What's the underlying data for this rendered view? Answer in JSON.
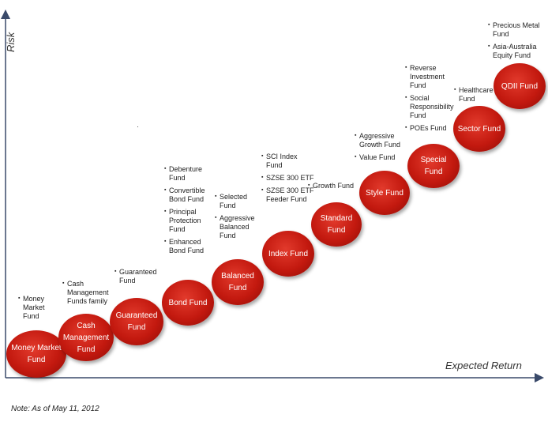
{
  "axes": {
    "y_label": "Risk",
    "x_label": "Expected Return"
  },
  "footnote": "Note: As of May 11, 2012",
  "funds": [
    {
      "label": "Money Market\nFund",
      "notes": [
        "Money\nMarket\nFund"
      ]
    },
    {
      "label": "Cash\nManagement\nFund",
      "notes": [
        "Cash\nManagement\nFunds family"
      ]
    },
    {
      "label": "Guaranteed\nFund",
      "notes": [
        "Guaranteed\nFund"
      ]
    },
    {
      "label": "Bond Fund",
      "notes": [
        "Debenture\nFund",
        "Convertible\nBond Fund",
        "Principal\nProtection\nFund",
        "Enhanced\nBond Fund"
      ]
    },
    {
      "label": "Balanced\nFund",
      "notes": [
        "Selected\nFund",
        "Aggressive\nBalanced\nFund"
      ]
    },
    {
      "label": "Index Fund",
      "notes": [
        "SCI Index\nFund",
        "SZSE 300 ETF",
        "SZSE 300 ETF\nFeeder Fund"
      ]
    },
    {
      "label": "Standard\nFund",
      "notes": [
        "Growth Fund"
      ]
    },
    {
      "label": "Style Fund",
      "notes": [
        "Aggressive\nGrowth Fund",
        "Value Fund"
      ]
    },
    {
      "label": "Special Fund",
      "notes": [
        "Reverse\nInvestment\nFund",
        "Social\nResponsibility\nFund",
        "POEs Fund"
      ]
    },
    {
      "label": "Sector Fund",
      "notes": [
        "Healthcare\nFund"
      ]
    },
    {
      "label": "QDII Fund",
      "notes": [
        "Precious Metal\nFund",
        "Asia-Australia\nEquity Fund"
      ]
    }
  ]
}
